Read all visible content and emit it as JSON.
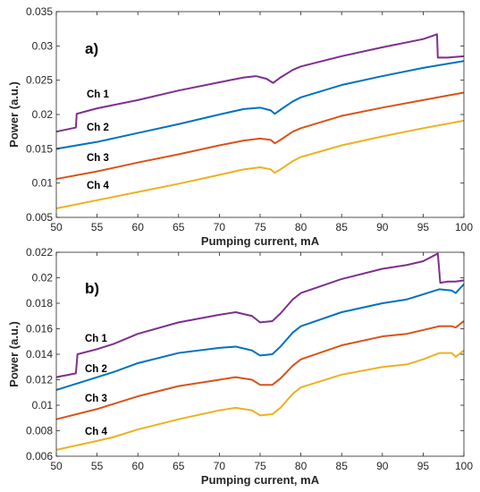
{
  "colors": {
    "ch1": "#7E2F8E",
    "ch2": "#0072BD",
    "ch3": "#D95319",
    "ch4": "#EDB120",
    "axis": "#262626"
  },
  "chart_data": [
    {
      "type": "line",
      "panel_label": "a)",
      "xlabel": "Pumping current, mA",
      "ylabel": "Power (a.u.)",
      "xlim": [
        50,
        100
      ],
      "ylim": [
        0.005,
        0.035
      ],
      "x_ticks": [
        "50",
        "55",
        "60",
        "65",
        "70",
        "75",
        "80",
        "85",
        "90",
        "95",
        "100"
      ],
      "y_ticks": [
        "0.005",
        "0.01",
        "0.015",
        "0.02",
        "0.025",
        "0.03",
        "0.035"
      ],
      "grid": false,
      "labels": [
        "Ch 1",
        "Ch 2",
        "Ch 3",
        "Ch 4"
      ],
      "series": [
        {
          "name": "Ch 1",
          "color_key": "ch1",
          "x": [
            50,
            52.4,
            52.5,
            55,
            60,
            65,
            70,
            73,
            74.5,
            75.8,
            76.6,
            77.5,
            79,
            80,
            85,
            90,
            95,
            96.7,
            96.8,
            98,
            100
          ],
          "y": [
            0.0175,
            0.0181,
            0.0201,
            0.0209,
            0.0221,
            0.0235,
            0.0247,
            0.0254,
            0.0256,
            0.0252,
            0.0246,
            0.0254,
            0.0265,
            0.027,
            0.0285,
            0.0298,
            0.031,
            0.0317,
            0.0283,
            0.0283,
            0.0285
          ]
        },
        {
          "name": "Ch 2",
          "color_key": "ch2",
          "x": [
            50,
            55,
            60,
            65,
            70,
            73,
            75,
            76.3,
            76.8,
            77.5,
            79,
            80,
            85,
            90,
            95,
            100
          ],
          "y": [
            0.015,
            0.016,
            0.0173,
            0.0186,
            0.02,
            0.0208,
            0.021,
            0.0206,
            0.0201,
            0.0207,
            0.0219,
            0.0225,
            0.0243,
            0.0256,
            0.0268,
            0.0278
          ]
        },
        {
          "name": "Ch 3",
          "color_key": "ch3",
          "x": [
            50,
            55,
            60,
            65,
            70,
            73,
            75,
            76.3,
            76.8,
            77.5,
            79,
            80,
            85,
            90,
            95,
            100
          ],
          "y": [
            0.0106,
            0.0117,
            0.013,
            0.0142,
            0.0155,
            0.0162,
            0.0165,
            0.0163,
            0.0158,
            0.0163,
            0.0175,
            0.018,
            0.0198,
            0.021,
            0.0221,
            0.0232
          ]
        },
        {
          "name": "Ch 4",
          "color_key": "ch4",
          "x": [
            50,
            55,
            60,
            65,
            70,
            73,
            75,
            76.3,
            76.8,
            77.5,
            79,
            80,
            85,
            90,
            95,
            100
          ],
          "y": [
            0.0063,
            0.0075,
            0.0087,
            0.0099,
            0.0112,
            0.012,
            0.0123,
            0.012,
            0.0115,
            0.012,
            0.0132,
            0.0138,
            0.0155,
            0.0168,
            0.018,
            0.0191
          ]
        }
      ]
    },
    {
      "type": "line",
      "panel_label": "b)",
      "xlabel": "Pumping current, mA",
      "ylabel": "Power (a.u.)",
      "xlim": [
        50,
        100
      ],
      "ylim": [
        0.006,
        0.022
      ],
      "x_ticks": [
        "50",
        "55",
        "60",
        "65",
        "70",
        "75",
        "80",
        "85",
        "90",
        "95",
        "100"
      ],
      "y_ticks": [
        "0.006",
        "0.008",
        "0.01",
        "0.012",
        "0.014",
        "0.016",
        "0.018",
        "0.02",
        "0.022"
      ],
      "grid": false,
      "labels": [
        "Ch 1",
        "Ch 2",
        "Ch 3",
        "Ch 4"
      ],
      "series": [
        {
          "name": "Ch 1",
          "color_key": "ch1",
          "x": [
            50,
            52.4,
            52.6,
            55,
            57,
            60,
            65,
            70,
            72,
            74,
            75,
            76.5,
            77.5,
            79,
            80,
            85,
            90,
            93,
            95,
            96.8,
            97.1,
            98,
            99,
            100
          ],
          "y": [
            0.0122,
            0.0125,
            0.014,
            0.0144,
            0.0148,
            0.0156,
            0.0165,
            0.0171,
            0.0173,
            0.017,
            0.0165,
            0.0166,
            0.0172,
            0.0183,
            0.0188,
            0.0199,
            0.0207,
            0.021,
            0.0213,
            0.0219,
            0.0196,
            0.0197,
            0.0197,
            0.0198
          ]
        },
        {
          "name": "Ch 2",
          "color_key": "ch2",
          "x": [
            50,
            55,
            57,
            60,
            65,
            70,
            72,
            74,
            75,
            76.5,
            77.5,
            79,
            80,
            85,
            90,
            93,
            95,
            97,
            98.5,
            99,
            100
          ],
          "y": [
            0.0112,
            0.0122,
            0.0126,
            0.0133,
            0.0141,
            0.0145,
            0.0146,
            0.0143,
            0.0139,
            0.014,
            0.0146,
            0.0157,
            0.0162,
            0.0173,
            0.018,
            0.0183,
            0.0187,
            0.0191,
            0.019,
            0.0188,
            0.0195
          ]
        },
        {
          "name": "Ch 3",
          "color_key": "ch3",
          "x": [
            50,
            55,
            57,
            60,
            65,
            70,
            72,
            74,
            75,
            76.5,
            77.5,
            79,
            80,
            85,
            90,
            93,
            95,
            97,
            98.5,
            99,
            100
          ],
          "y": [
            0.0089,
            0.0097,
            0.0101,
            0.0107,
            0.0115,
            0.012,
            0.0122,
            0.012,
            0.0116,
            0.0116,
            0.0121,
            0.0131,
            0.0136,
            0.0147,
            0.0154,
            0.0156,
            0.0159,
            0.0162,
            0.0162,
            0.0161,
            0.0166
          ]
        },
        {
          "name": "Ch 4",
          "color_key": "ch4",
          "x": [
            50,
            55,
            57,
            60,
            65,
            70,
            72,
            74,
            75,
            76.5,
            77.5,
            79,
            80,
            85,
            90,
            93,
            95,
            97,
            98.5,
            99,
            100
          ],
          "y": [
            0.0065,
            0.0072,
            0.0075,
            0.0081,
            0.0089,
            0.0096,
            0.0098,
            0.0096,
            0.0092,
            0.0093,
            0.0098,
            0.0109,
            0.0114,
            0.0124,
            0.013,
            0.0132,
            0.0136,
            0.0141,
            0.0141,
            0.0138,
            0.0143
          ]
        }
      ]
    }
  ]
}
